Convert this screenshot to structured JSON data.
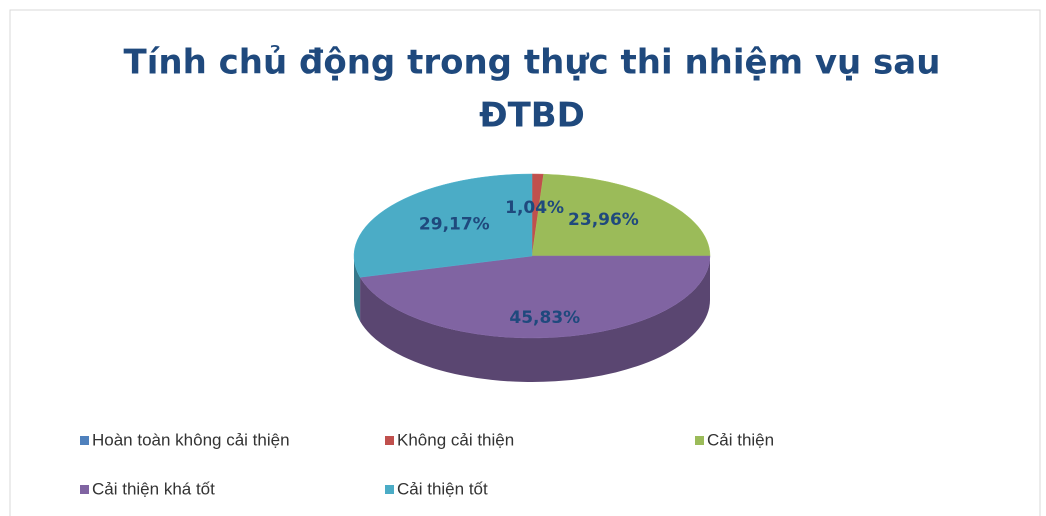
{
  "chart_data": {
    "type": "pie",
    "title": "Tính chủ động trong thực thi nhiệm vụ sau",
    "subtitle": "ĐTBD",
    "categories": [
      "Hoàn toàn không cải thiện",
      "Không cải thiện",
      "Cải thiện",
      "Cải thiện khá tốt",
      "Cải thiện tốt"
    ],
    "values": [
      0,
      1.04,
      23.96,
      45.83,
      29.17
    ],
    "value_labels": [
      null,
      "1,04%",
      "23,96%",
      "45,83%",
      "29,17%"
    ],
    "colors": [
      "#4f81bd",
      "#c0504d",
      "#9bbb59",
      "#8064a2",
      "#4bacc6"
    ],
    "legend": "bottom"
  }
}
